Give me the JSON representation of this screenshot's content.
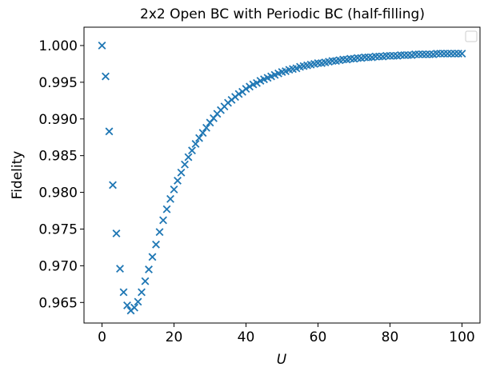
{
  "chart_data": {
    "type": "scatter",
    "title": "2x2 Open BC with Periodic BC (half-filling)",
    "xlabel": "U",
    "ylabel": "Fidelity",
    "xlim": [
      -5,
      105
    ],
    "ylim": [
      0.9622,
      1.0025
    ],
    "xticks": [
      0,
      20,
      40,
      60,
      80,
      100
    ],
    "xtick_labels": [
      "0",
      "20",
      "40",
      "60",
      "80",
      "100"
    ],
    "yticks": [
      0.965,
      0.97,
      0.975,
      0.98,
      0.985,
      0.99,
      0.995,
      1.0
    ],
    "ytick_labels": [
      "0.965",
      "0.970",
      "0.975",
      "0.980",
      "0.985",
      "0.990",
      "0.995",
      "1.000"
    ],
    "grid": false,
    "legend": "top-right",
    "series": [
      {
        "marker": "x",
        "color": "#1f77b4",
        "x": [
          0,
          1,
          2,
          3,
          4,
          5,
          6,
          7,
          8,
          9,
          10,
          11,
          12,
          13,
          14,
          15,
          16,
          17,
          18,
          19,
          20,
          21,
          22,
          23,
          24,
          25,
          26,
          27,
          28,
          29,
          30,
          31,
          32,
          33,
          34,
          35,
          36,
          37,
          38,
          39,
          40,
          41,
          42,
          43,
          44,
          45,
          46,
          47,
          48,
          49,
          50,
          51,
          52,
          53,
          54,
          55,
          56,
          57,
          58,
          59,
          60,
          61,
          62,
          63,
          64,
          65,
          66,
          67,
          68,
          69,
          70,
          71,
          72,
          73,
          74,
          75,
          76,
          77,
          78,
          79,
          80,
          81,
          82,
          83,
          84,
          85,
          86,
          87,
          88,
          89,
          90,
          91,
          92,
          93,
          94,
          95,
          96,
          97,
          98,
          99,
          100
        ],
        "y": [
          1.0,
          0.9958,
          0.9883,
          0.981,
          0.9744,
          0.9696,
          0.9664,
          0.9646,
          0.9639,
          0.9643,
          0.9651,
          0.9664,
          0.9679,
          0.9695,
          0.9712,
          0.9729,
          0.9746,
          0.9762,
          0.9777,
          0.9791,
          0.9804,
          0.9816,
          0.9827,
          0.9838,
          0.9848,
          0.9857,
          0.9866,
          0.9874,
          0.9881,
          0.9888,
          0.9895,
          0.9901,
          0.9907,
          0.9912,
          0.9917,
          0.9922,
          0.9926,
          0.993,
          0.9934,
          0.9937,
          0.9941,
          0.9944,
          0.9947,
          0.9949,
          0.9952,
          0.9954,
          0.9956,
          0.9958,
          0.996,
          0.9962,
          0.9964,
          0.9965,
          0.9967,
          0.9968,
          0.9969,
          0.9971,
          0.9972,
          0.9973,
          0.9974,
          0.9975,
          0.9976,
          0.9976,
          0.9977,
          0.9978,
          0.9979,
          0.9979,
          0.998,
          0.9981,
          0.9981,
          0.9982,
          0.9982,
          0.9983,
          0.9983,
          0.9984,
          0.9984,
          0.9984,
          0.9985,
          0.9985,
          0.9985,
          0.9986,
          0.9986,
          0.9986,
          0.9986,
          0.9987,
          0.9987,
          0.9987,
          0.9987,
          0.9988,
          0.9988,
          0.9988,
          0.9988,
          0.9988,
          0.9988,
          0.9989,
          0.9989,
          0.9989,
          0.9989,
          0.9989,
          0.9989,
          0.9989,
          0.9989
        ]
      }
    ]
  }
}
